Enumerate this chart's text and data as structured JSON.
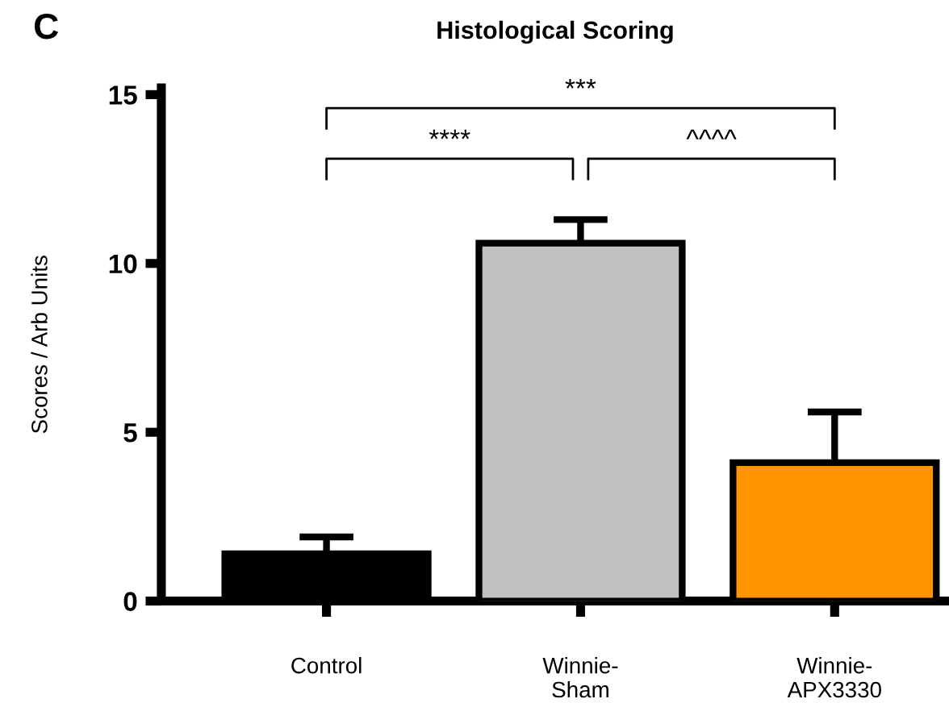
{
  "chart_data": {
    "type": "bar",
    "title": "Histological Scoring",
    "ylabel": "Scores / Arb Units",
    "categories": [
      "Control",
      "Winnie-\nSham",
      "Winnie-\nAPX3330"
    ],
    "values": [
      1.4,
      10.6,
      4.1
    ],
    "errors": [
      0.5,
      0.7,
      1.5
    ],
    "colors": [
      "#000000",
      "#c0c0c0",
      "#ff9400"
    ],
    "ylim": [
      0,
      15.2
    ],
    "yticks": [
      0,
      5,
      10,
      15
    ],
    "grid": false,
    "legend": false,
    "annotations": [
      "C",
      "****",
      "^^^^",
      "***"
    ]
  }
}
